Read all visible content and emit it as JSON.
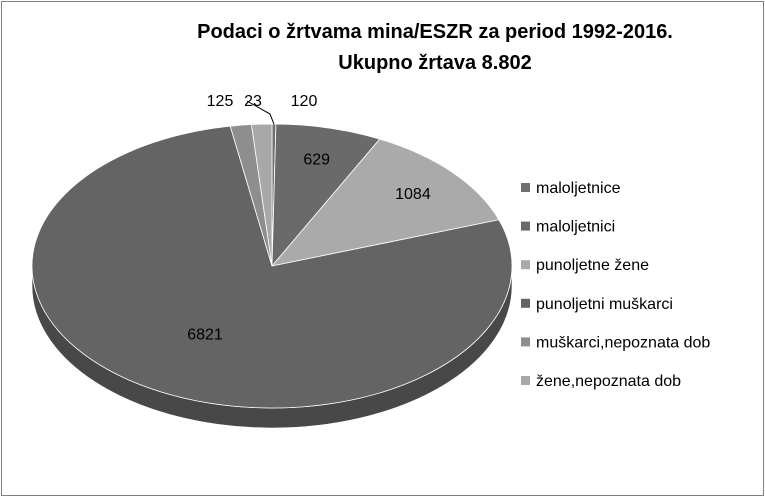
{
  "chart_data": {
    "type": "pie",
    "style": "3d",
    "title_lines": [
      "Podaci o žrtvama mina/ESZR za period 1992-2016.",
      "Ukupno žrtava 8.802"
    ],
    "categories": [
      "maloljetnice",
      "maloljetnici",
      "punoljetne žene",
      "punoljetni muškarci",
      "muškarci,nepoznata dob",
      "žene,nepoznata dob"
    ],
    "values": [
      23,
      629,
      1084,
      6821,
      125,
      120
    ],
    "colors": [
      "#6f6f6f",
      "#6a6a6a",
      "#aaaaaa",
      "#646464",
      "#8e8e8e",
      "#a8a8a8"
    ],
    "pie_order": [
      0,
      1,
      2,
      3,
      4,
      5
    ],
    "data_labels": [
      "23",
      "629",
      "1084",
      "6821",
      "125",
      "120"
    ],
    "legend_placement": "right"
  }
}
